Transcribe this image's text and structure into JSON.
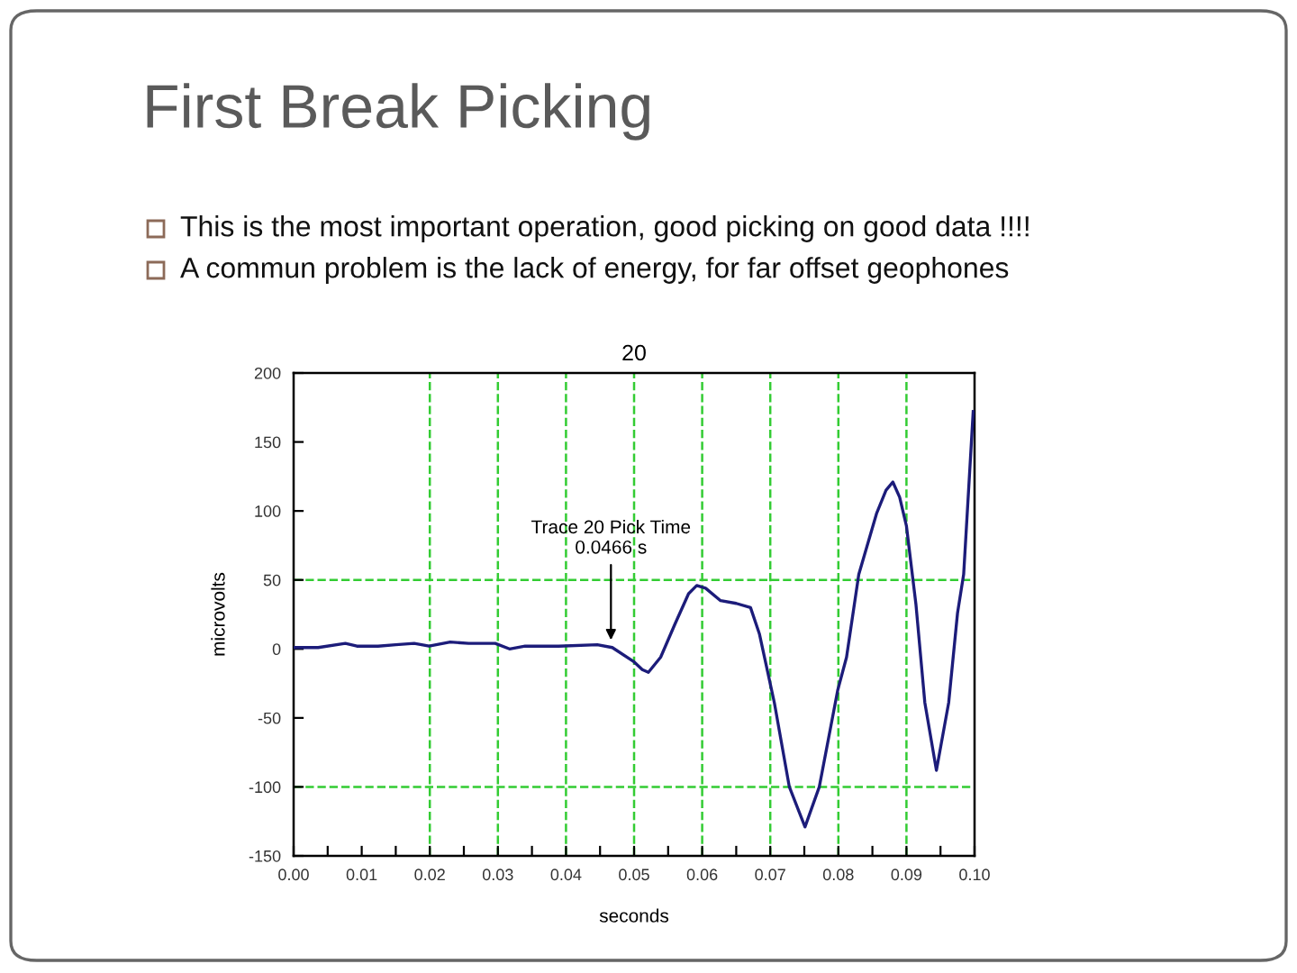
{
  "chart_data": {
    "type": "line",
    "title": "First Break Picking",
    "subtitle": "20",
    "xlabel": "seconds",
    "ylabel": "microvolts",
    "annotations": [
      "This is the most important operation, good picking on good data !!!!",
      "A commun problem is the lack of energy, for far offset geophones",
      {
        "text": "Trace 20 Pick Time\n0.0466 s",
        "x": 0.0466,
        "y": 1
      }
    ],
    "x": [
      0.0,
      0.0036,
      0.0076,
      0.0093,
      0.0124,
      0.015,
      0.0177,
      0.0199,
      0.023,
      0.0257,
      0.0296,
      0.0317,
      0.034,
      0.0389,
      0.0446,
      0.0468,
      0.0499,
      0.0512,
      0.0521,
      0.0539,
      0.056,
      0.058,
      0.0592,
      0.0605,
      0.0627,
      0.065,
      0.0671,
      0.0684,
      0.0706,
      0.0728,
      0.0751,
      0.0772,
      0.0799,
      0.0812,
      0.083,
      0.0856,
      0.087,
      0.088,
      0.089,
      0.09,
      0.0914,
      0.0927,
      0.0944,
      0.0962,
      0.0975,
      0.0984,
      0.0998
    ],
    "series": [
      {
        "color": "#1c1c7a",
        "values": [
          1,
          1,
          4,
          2,
          2,
          3,
          4,
          2,
          5,
          4,
          4,
          0,
          2,
          2,
          3,
          1,
          -9,
          -15,
          -17,
          -6,
          18,
          40,
          46,
          44,
          35,
          33,
          30,
          11,
          -39,
          -100,
          -129,
          -100,
          -30,
          -6,
          54,
          98,
          115,
          121,
          110,
          89,
          32,
          -39,
          -88,
          -39,
          26,
          54,
          172
        ]
      }
    ],
    "xlim": [
      0,
      0.1
    ],
    "xticks": [
      {
        "value": 0,
        "label": "0.00"
      },
      {
        "value": 0.005,
        "label": null
      },
      {
        "value": 0.01,
        "label": "0.01"
      },
      {
        "value": 0.015,
        "label": null
      },
      {
        "value": 0.02,
        "label": "0.02"
      },
      {
        "value": 0.025,
        "label": null
      },
      {
        "value": 0.03,
        "label": "0.03"
      },
      {
        "value": 0.035,
        "label": null
      },
      {
        "value": 0.04,
        "label": "0.04"
      },
      {
        "value": 0.045,
        "label": null
      },
      {
        "value": 0.05,
        "label": "0.05"
      },
      {
        "value": 0.055,
        "label": null
      },
      {
        "value": 0.06,
        "label": "0.06"
      },
      {
        "value": 0.065,
        "label": null
      },
      {
        "value": 0.07,
        "label": "0.07"
      },
      {
        "value": 0.075,
        "label": null
      },
      {
        "value": 0.08,
        "label": "0.08"
      },
      {
        "value": 0.085,
        "label": null
      },
      {
        "value": 0.09,
        "label": "0.09"
      },
      {
        "value": 0.095,
        "label": null
      },
      {
        "value": 0.1,
        "label": "0.10"
      }
    ],
    "ylim": [
      -150,
      200
    ],
    "yticks": [
      -150,
      -100,
      -50,
      0,
      50,
      100,
      150,
      200
    ],
    "ref_lines": [
      {
        "axis": "x",
        "value": 0.02,
        "color": "#33cc33",
        "line_style": "dashed"
      },
      {
        "axis": "x",
        "value": 0.03,
        "color": "#33cc33",
        "line_style": "dashed"
      },
      {
        "axis": "x",
        "value": 0.04,
        "color": "#33cc33",
        "line_style": "dashed"
      },
      {
        "axis": "x",
        "value": 0.05,
        "color": "#33cc33",
        "line_style": "dashed"
      },
      {
        "axis": "x",
        "value": 0.06,
        "color": "#33cc33",
        "line_style": "dashed"
      },
      {
        "axis": "x",
        "value": 0.07,
        "color": "#33cc33",
        "line_style": "dashed"
      },
      {
        "axis": "x",
        "value": 0.08,
        "color": "#33cc33",
        "line_style": "dashed"
      },
      {
        "axis": "x",
        "value": 0.09,
        "color": "#33cc33",
        "line_style": "dashed"
      },
      {
        "axis": "y",
        "value": 50,
        "color": "#33cc33",
        "line_style": "dashed"
      },
      {
        "axis": "y",
        "value": -100,
        "color": "#33cc33",
        "line_style": "dashed"
      }
    ],
    "grid": false,
    "marker": "none",
    "line_style": "solid"
  }
}
